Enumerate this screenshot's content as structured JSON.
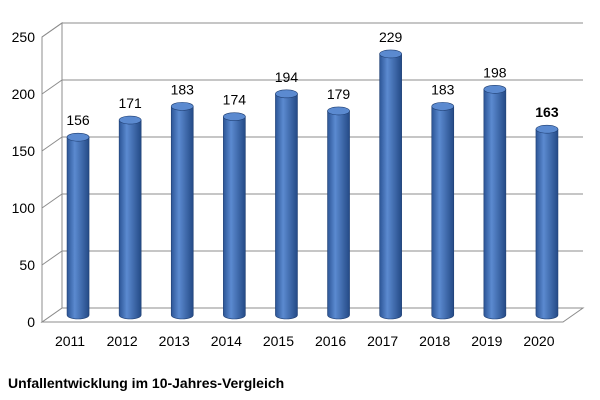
{
  "chart_data": {
    "type": "bar",
    "title": "Unfallentwicklung im 10-Jahres-Vergleich",
    "xlabel": "",
    "ylabel": "",
    "categories": [
      "2011",
      "2012",
      "2013",
      "2014",
      "2015",
      "2016",
      "2017",
      "2018",
      "2019",
      "2020"
    ],
    "values": [
      156,
      171,
      183,
      174,
      194,
      179,
      229,
      183,
      198,
      163
    ],
    "value_labels": [
      "156",
      "171",
      "183",
      "174",
      "194",
      "179",
      "229",
      "183",
      "198",
      "163"
    ],
    "highlighted_label": "2020",
    "ylim": [
      0,
      250
    ],
    "yticks": [
      "0",
      "50",
      "100",
      "150",
      "200",
      "250"
    ],
    "grid": true,
    "legend": "none",
    "bar_color": "#3e6fb8",
    "bar_top_color": "#5b8ad0"
  }
}
